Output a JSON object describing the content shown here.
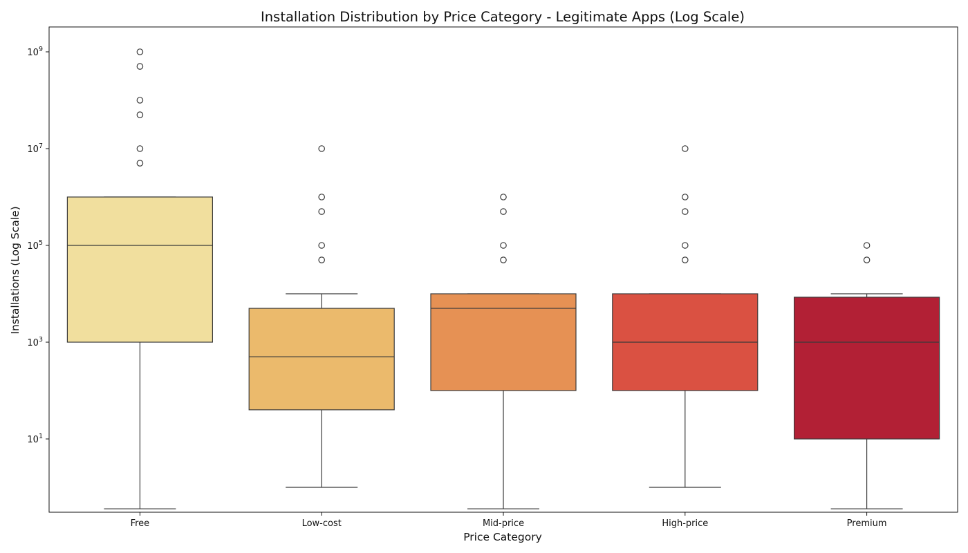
{
  "chart_data": {
    "type": "box",
    "title": "Installation Distribution by Price Category - Legitimate Apps (Log Scale)",
    "xlabel": "Price Category",
    "ylabel": "Installations (Log Scale)",
    "y_scale": "log",
    "ylim": [
      0.36,
      2300000000
    ],
    "y_ticks": [
      10,
      1000,
      100000,
      10000000,
      1000000000
    ],
    "y_tick_labels": [
      {
        "base": "10",
        "exp": "1"
      },
      {
        "base": "10",
        "exp": "3"
      },
      {
        "base": "10",
        "exp": "5"
      },
      {
        "base": "10",
        "exp": "7"
      },
      {
        "base": "10",
        "exp": "9"
      }
    ],
    "grid": false,
    "legend": "none",
    "categories": [
      "Free",
      "Low-cost",
      "Mid-price",
      "High-price",
      "Premium"
    ],
    "boxes": [
      {
        "category": "Free",
        "color": "#F1DF9E",
        "whisker_low": 0.36,
        "q1": 1000,
        "median": 100000,
        "q3": 1000000,
        "whisker_high": 1000000,
        "outliers": [
          5000000,
          10000000,
          50000000,
          100000000,
          500000000,
          1000000000
        ]
      },
      {
        "category": "Low-cost",
        "color": "#EBBA6C",
        "whisker_low": 1,
        "q1": 40,
        "median": 500,
        "q3": 5000,
        "whisker_high": 10000,
        "outliers": [
          50000,
          100000,
          500000,
          1000000,
          10000000
        ]
      },
      {
        "category": "Mid-price",
        "color": "#E69154",
        "whisker_low": 0.36,
        "q1": 100,
        "median": 5000,
        "q3": 10000,
        "whisker_high": 10000,
        "outliers": [
          50000,
          100000,
          500000,
          1000000
        ]
      },
      {
        "category": "High-price",
        "color": "#DA5142",
        "whisker_low": 1,
        "q1": 100,
        "median": 1000,
        "q3": 10000,
        "whisker_high": 10000,
        "outliers": [
          50000,
          100000,
          500000,
          1000000,
          10000000
        ]
      },
      {
        "category": "Premium",
        "color": "#B22035",
        "whisker_low": 0.36,
        "q1": 10,
        "median": 1000,
        "q3": 8500,
        "whisker_high": 10000,
        "outliers": [
          50000,
          100000
        ]
      }
    ]
  }
}
